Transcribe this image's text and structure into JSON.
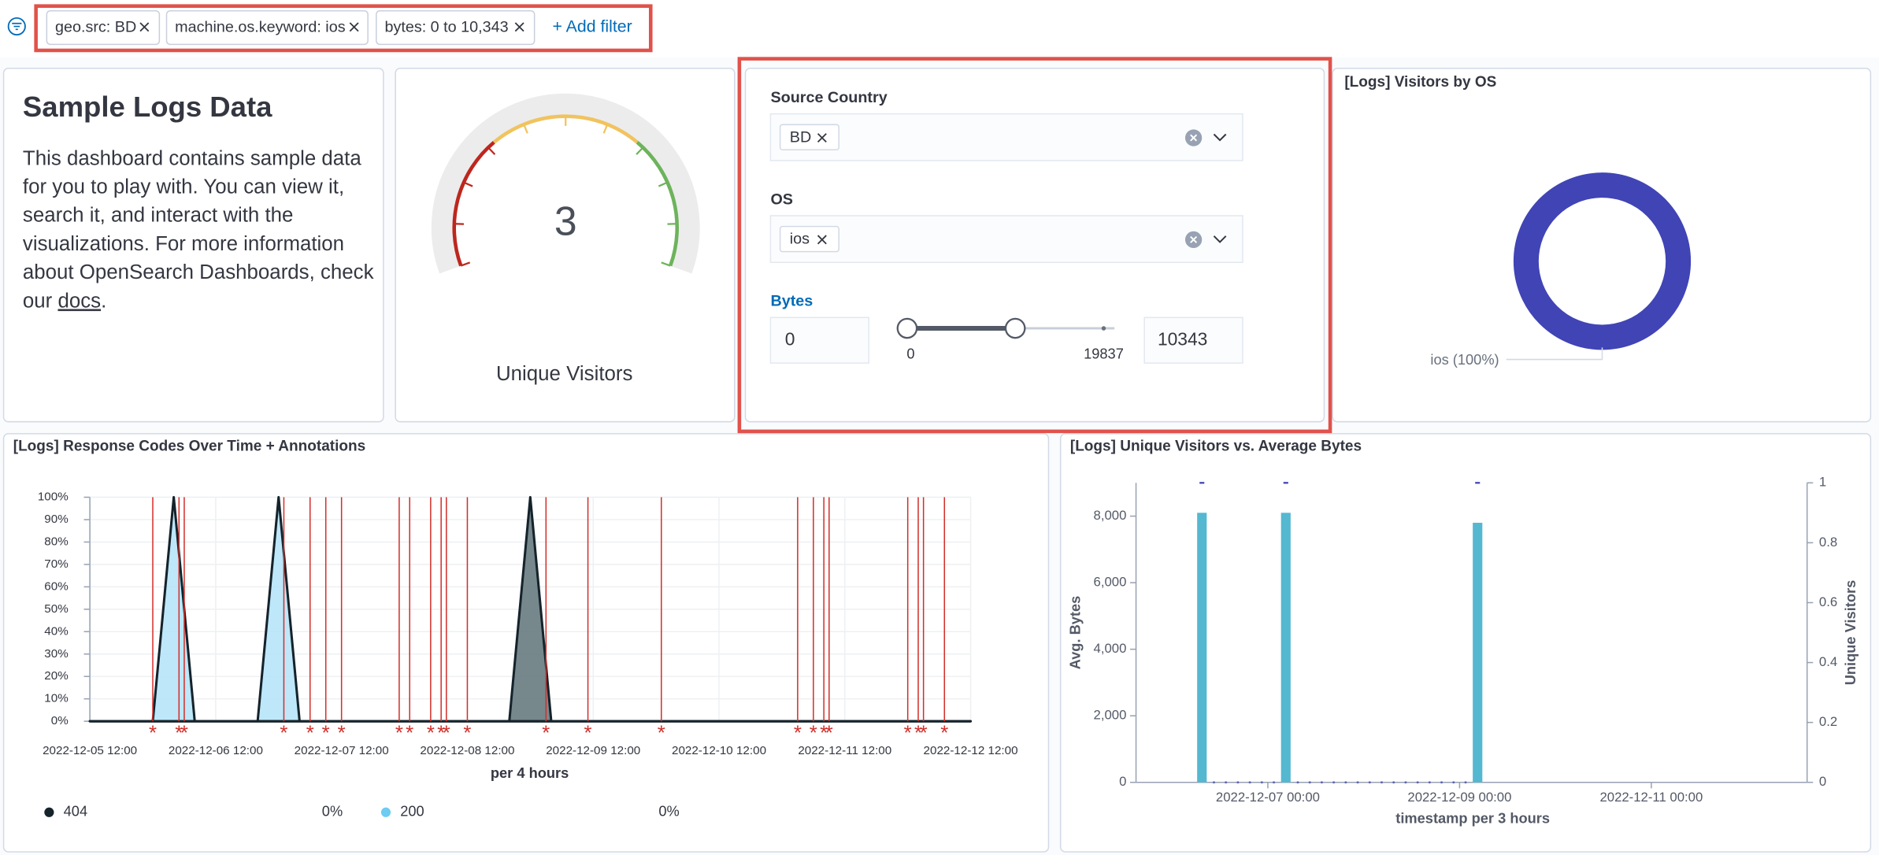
{
  "filter_bar": {
    "filters": [
      "geo.src: BD",
      "machine.os.keyword: ios",
      "bytes: 0 to 10,343"
    ],
    "add_filter": "+ Add filter"
  },
  "markdown": {
    "title": "Sample Logs Data",
    "lines": [
      "This dashboard contains sample data",
      "for you to play with. You can view it,",
      "search it, and interact with the",
      "visualizations. For more information",
      "about OpenSearch Dashboards, check"
    ],
    "last_line_start": "our ",
    "link": "docs",
    "last_line_end": "."
  },
  "gauge": {
    "value": 3,
    "label": "Unique Visitors"
  },
  "controls": {
    "source_country": {
      "label": "Source Country",
      "selected": "BD"
    },
    "os": {
      "label": "OS",
      "selected": "ios"
    },
    "bytes": {
      "label": "Bytes",
      "from": 0,
      "to": 10343,
      "min": 0,
      "max": 19837
    }
  },
  "chart_data": [
    {
      "type": "pie",
      "title": "[Logs] Visitors by OS",
      "categories": [
        "ios (100%)"
      ],
      "values": [
        100
      ],
      "colors": [
        "#4044b5"
      ]
    },
    {
      "type": "area",
      "title": "[Logs] Response Codes Over Time + Annotations",
      "xlabel": "per 4 hours",
      "xlim": [
        "2022-12-05 12:00",
        "2022-12-12 12:00"
      ],
      "xticks": [
        "2022-12-05 12:00",
        "2022-12-06 12:00",
        "2022-12-07 12:00",
        "2022-12-08 12:00",
        "2022-12-09 12:00",
        "2022-12-10 12:00",
        "2022-12-11 12:00",
        "2022-12-12 12:00"
      ],
      "ylim": [
        0,
        100
      ],
      "yticks": [
        {
          "value": 0,
          "label": "0%"
        },
        {
          "value": 10,
          "label": "10%"
        },
        {
          "value": 20,
          "label": "20%"
        },
        {
          "value": 30,
          "label": "30%"
        },
        {
          "value": 40,
          "label": "40%"
        },
        {
          "value": 50,
          "label": "50%"
        },
        {
          "value": 60,
          "label": "60%"
        },
        {
          "value": 70,
          "label": "70%"
        },
        {
          "value": 80,
          "label": "80%"
        },
        {
          "value": 90,
          "label": "90%"
        },
        {
          "value": 100,
          "label": "100%"
        }
      ],
      "grid": true,
      "series": [
        {
          "name": "404",
          "color": "#15232b",
          "fill": "#5f7379",
          "legend_value": "0%",
          "x": [
            "2022-12-05 12:00",
            "2022-12-08 20:00",
            "2022-12-09 00:00",
            "2022-12-09 04:00",
            "2022-12-12 12:00"
          ],
          "values": [
            0,
            0,
            100,
            0,
            0
          ]
        },
        {
          "name": "200",
          "color": "#6dccf1",
          "fill": "#b3e3f9",
          "legend_value": "0%",
          "x": [
            "2022-12-05 12:00",
            "2022-12-06 00:00",
            "2022-12-06 04:00",
            "2022-12-06 08:00",
            "2022-12-06 20:00",
            "2022-12-07 00:00",
            "2022-12-07 04:00",
            "2022-12-12 12:00"
          ],
          "values": [
            0,
            0,
            100,
            0,
            0,
            100,
            0,
            0
          ]
        }
      ],
      "annotations": {
        "label": "*",
        "color": "#d2302b",
        "x": [
          "2022-12-06 00:00",
          "2022-12-06 05:00",
          "2022-12-06 06:00",
          "2022-12-07 01:00",
          "2022-12-07 06:00",
          "2022-12-07 09:00",
          "2022-12-07 12:00",
          "2022-12-07 23:00",
          "2022-12-08 01:00",
          "2022-12-08 05:00",
          "2022-12-08 07:00",
          "2022-12-08 08:00",
          "2022-12-08 12:00",
          "2022-12-09 03:00",
          "2022-12-09 11:00",
          "2022-12-10 01:00",
          "2022-12-11 03:00",
          "2022-12-11 06:00",
          "2022-12-11 08:00",
          "2022-12-11 09:00",
          "2022-12-12 00:00",
          "2022-12-12 02:00",
          "2022-12-12 03:00",
          "2022-12-12 07:00"
        ]
      }
    },
    {
      "type": "bar-line",
      "title": "[Logs] Unique Visitors vs. Average Bytes",
      "xlabel": "timestamp per 3 hours",
      "ylabel": "Avg. Bytes",
      "y2label": "Unique Visitors",
      "xlim": [
        "2022-12-05 15:00",
        "2022-12-12 15:00"
      ],
      "xticks": [
        "2022-12-07 00:00",
        "2022-12-09 00:00",
        "2022-12-11 00:00"
      ],
      "ylim": [
        0,
        9000
      ],
      "yticks": [
        0,
        {
          "value": 2000,
          "label": "2,000"
        },
        {
          "value": 4000,
          "label": "4,000"
        },
        {
          "value": 6000,
          "label": "6,000"
        },
        {
          "value": 8000,
          "label": "8,000"
        }
      ],
      "y2lim": [
        0,
        1
      ],
      "y2ticks": [
        0,
        0.2,
        0.4,
        0.6,
        0.8,
        1
      ],
      "series": [
        {
          "type": "bar",
          "color": "#54b8d1",
          "x": [
            "2022-12-06 06:00",
            "2022-12-07 03:00",
            "2022-12-09 03:00"
          ],
          "values": [
            8100,
            8100,
            7800
          ]
        },
        {
          "type": "marker",
          "axis": "y2",
          "color": "#3f44b3",
          "x": [
            "2022-12-06 06:00",
            "2022-12-06 09:00",
            "2022-12-06 12:00",
            "2022-12-06 15:00",
            "2022-12-06 18:00",
            "2022-12-06 21:00",
            "2022-12-07 00:00",
            "2022-12-07 03:00",
            "2022-12-07 06:00",
            "2022-12-07 09:00",
            "2022-12-07 12:00",
            "2022-12-07 15:00",
            "2022-12-07 18:00",
            "2022-12-07 21:00",
            "2022-12-08 00:00",
            "2022-12-08 03:00",
            "2022-12-08 06:00",
            "2022-12-08 09:00",
            "2022-12-08 12:00",
            "2022-12-08 15:00",
            "2022-12-08 18:00",
            "2022-12-08 21:00",
            "2022-12-09 00:00",
            "2022-12-09 03:00"
          ],
          "values": [
            1,
            0,
            0,
            0,
            0,
            0,
            0,
            1,
            0,
            0,
            0,
            0,
            0,
            0,
            0,
            0,
            0,
            0,
            0,
            0,
            0,
            0,
            0,
            1
          ]
        }
      ]
    }
  ]
}
